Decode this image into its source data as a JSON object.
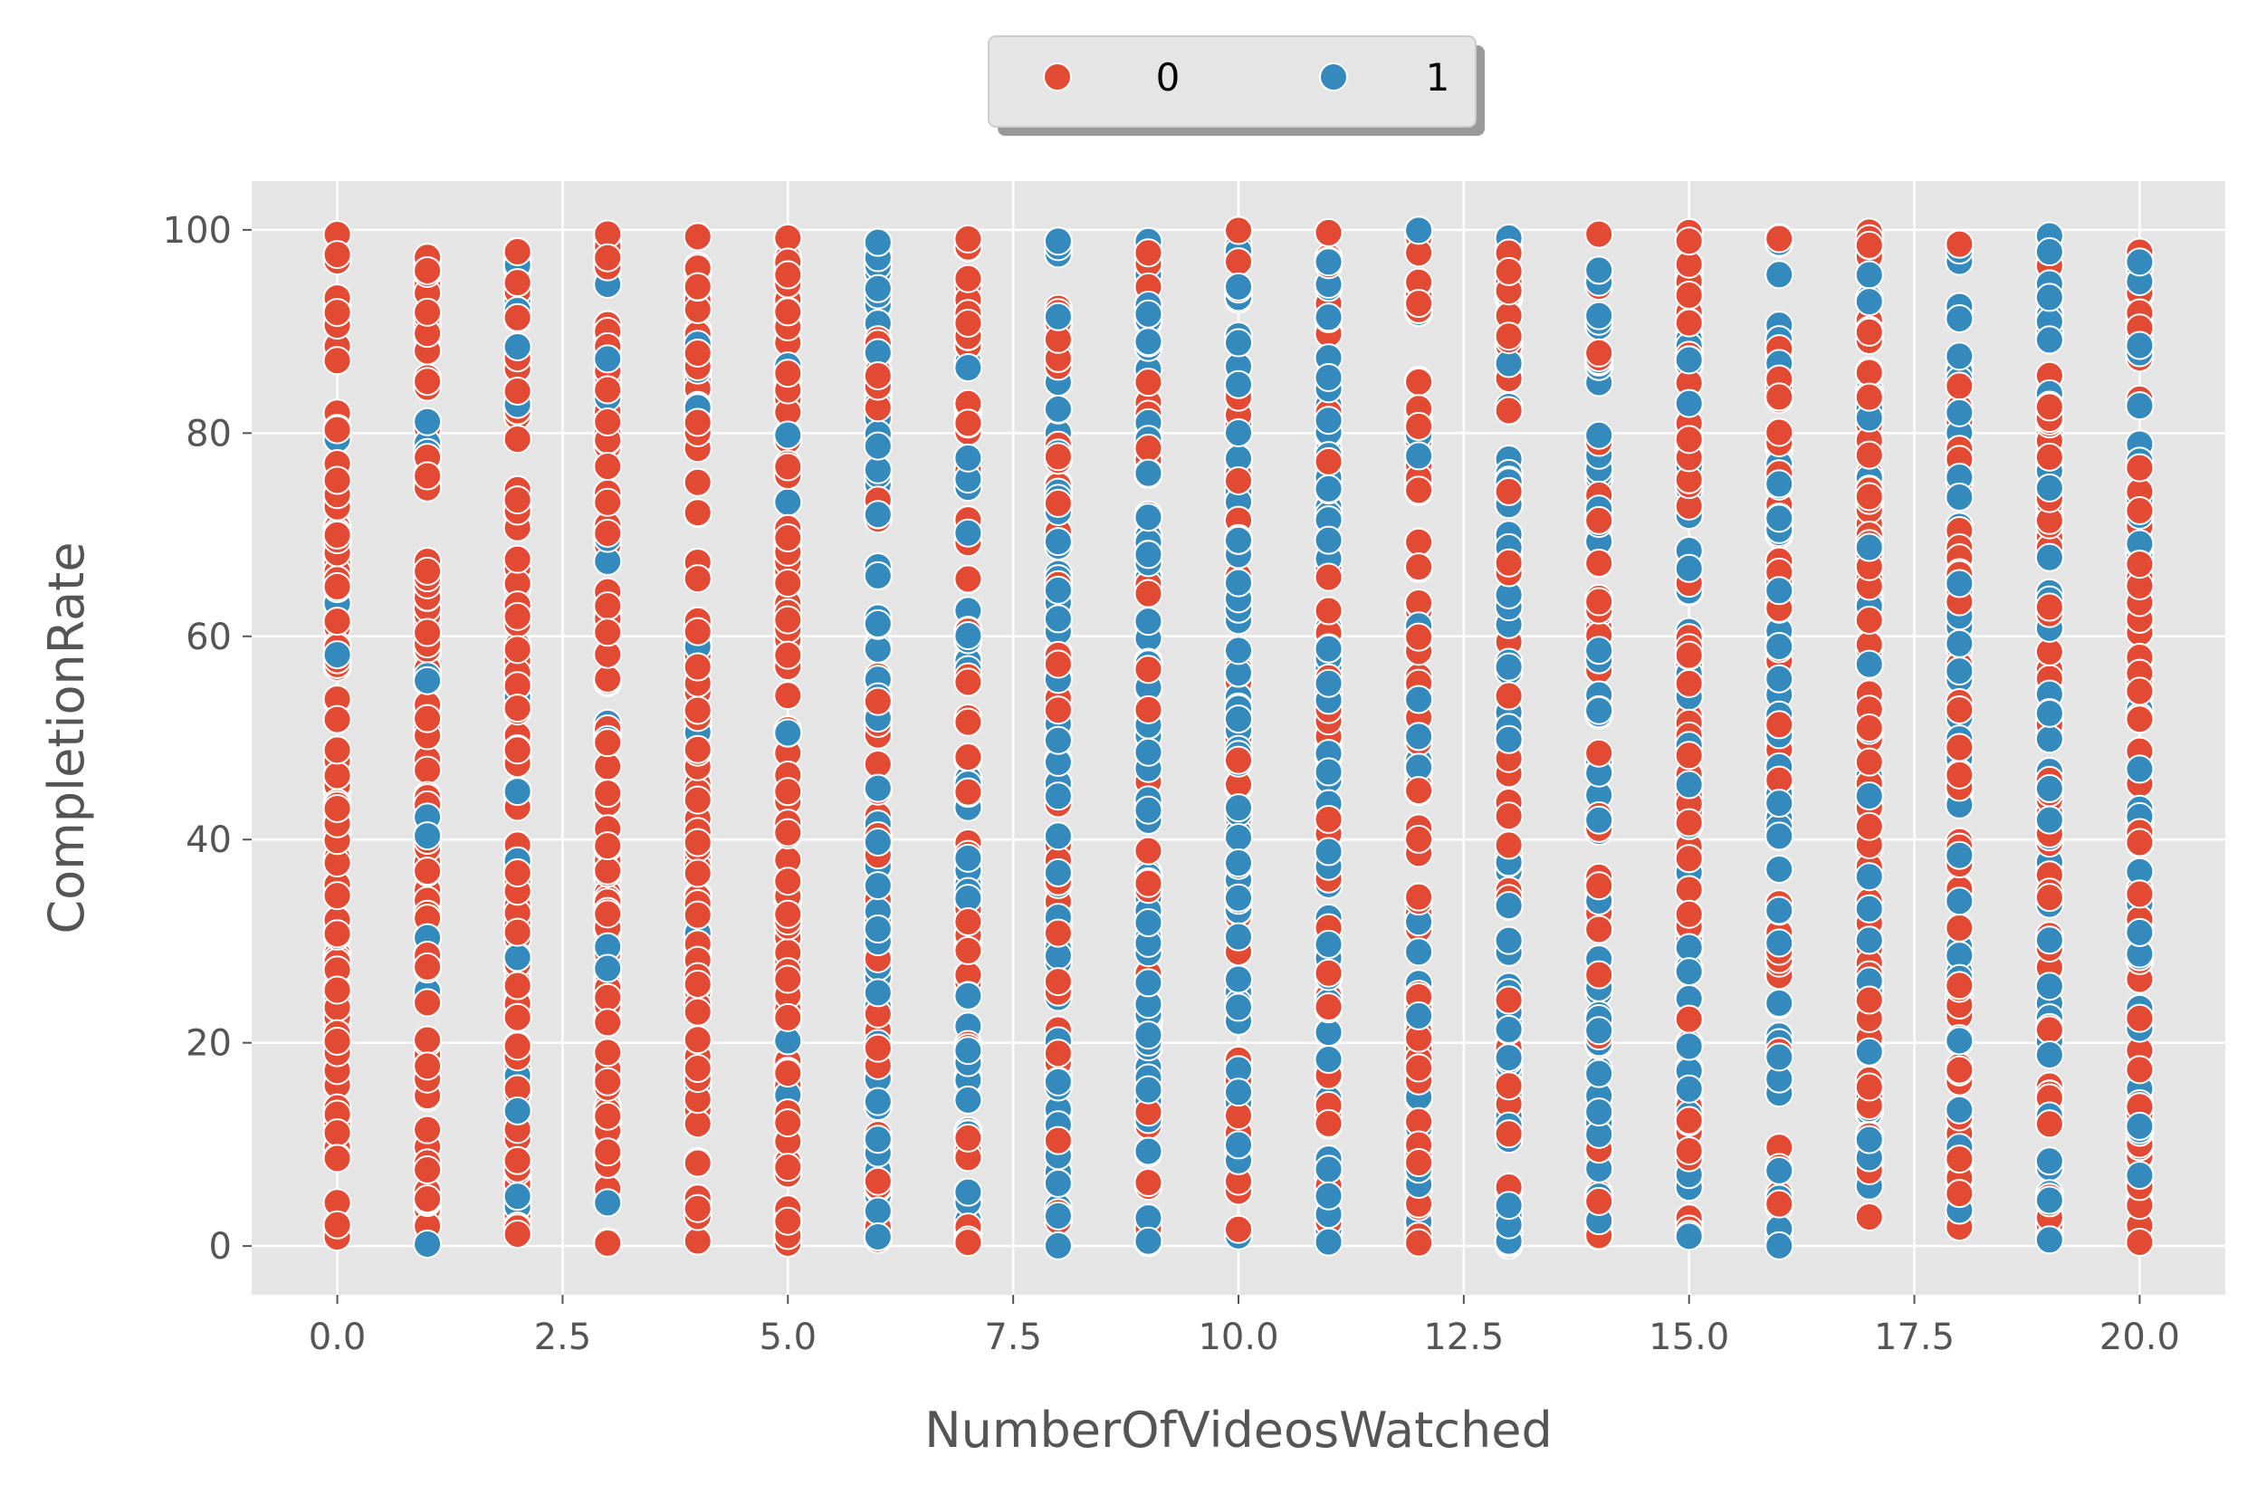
{
  "chart_data": {
    "type": "scatter",
    "title": "",
    "xlabel": "NumberOfVideosWatched",
    "ylabel": "CompletionRate",
    "xlim": [
      -0.95,
      20.95
    ],
    "ylim": [
      -4.8,
      104.8
    ],
    "x_ticks": [
      0.0,
      2.5,
      5.0,
      7.5,
      10.0,
      12.5,
      15.0,
      17.5,
      20.0
    ],
    "x_tick_labels": [
      "0.0",
      "2.5",
      "5.0",
      "7.5",
      "10.0",
      "12.5",
      "15.0",
      "17.5",
      "20.0"
    ],
    "y_ticks": [
      0,
      20,
      40,
      60,
      80,
      100
    ],
    "y_tick_labels": [
      "0",
      "20",
      "40",
      "60",
      "80",
      "100"
    ],
    "grid": true,
    "legend_position": "top-center",
    "x_values": [
      0,
      1,
      2,
      3,
      4,
      5,
      6,
      7,
      8,
      9,
      10,
      11,
      12,
      13,
      14,
      15,
      16,
      17,
      18,
      19,
      20
    ],
    "y_range_per_column": [
      0,
      100
    ],
    "series": [
      {
        "name": "0",
        "color": "#E24A33",
        "share_by_x": [
          0.96,
          0.9,
          0.85,
          0.94,
          0.88,
          0.9,
          0.45,
          0.55,
          0.35,
          0.3,
          0.4,
          0.5,
          0.75,
          0.45,
          0.4,
          0.6,
          0.5,
          0.6,
          0.55,
          0.55,
          0.6
        ]
      },
      {
        "name": "1",
        "color": "#348ABD",
        "share_by_x": [
          0.04,
          0.1,
          0.15,
          0.06,
          0.12,
          0.1,
          0.55,
          0.45,
          0.65,
          0.7,
          0.6,
          0.5,
          0.25,
          0.55,
          0.6,
          0.4,
          0.5,
          0.4,
          0.45,
          0.45,
          0.4
        ]
      }
    ]
  }
}
